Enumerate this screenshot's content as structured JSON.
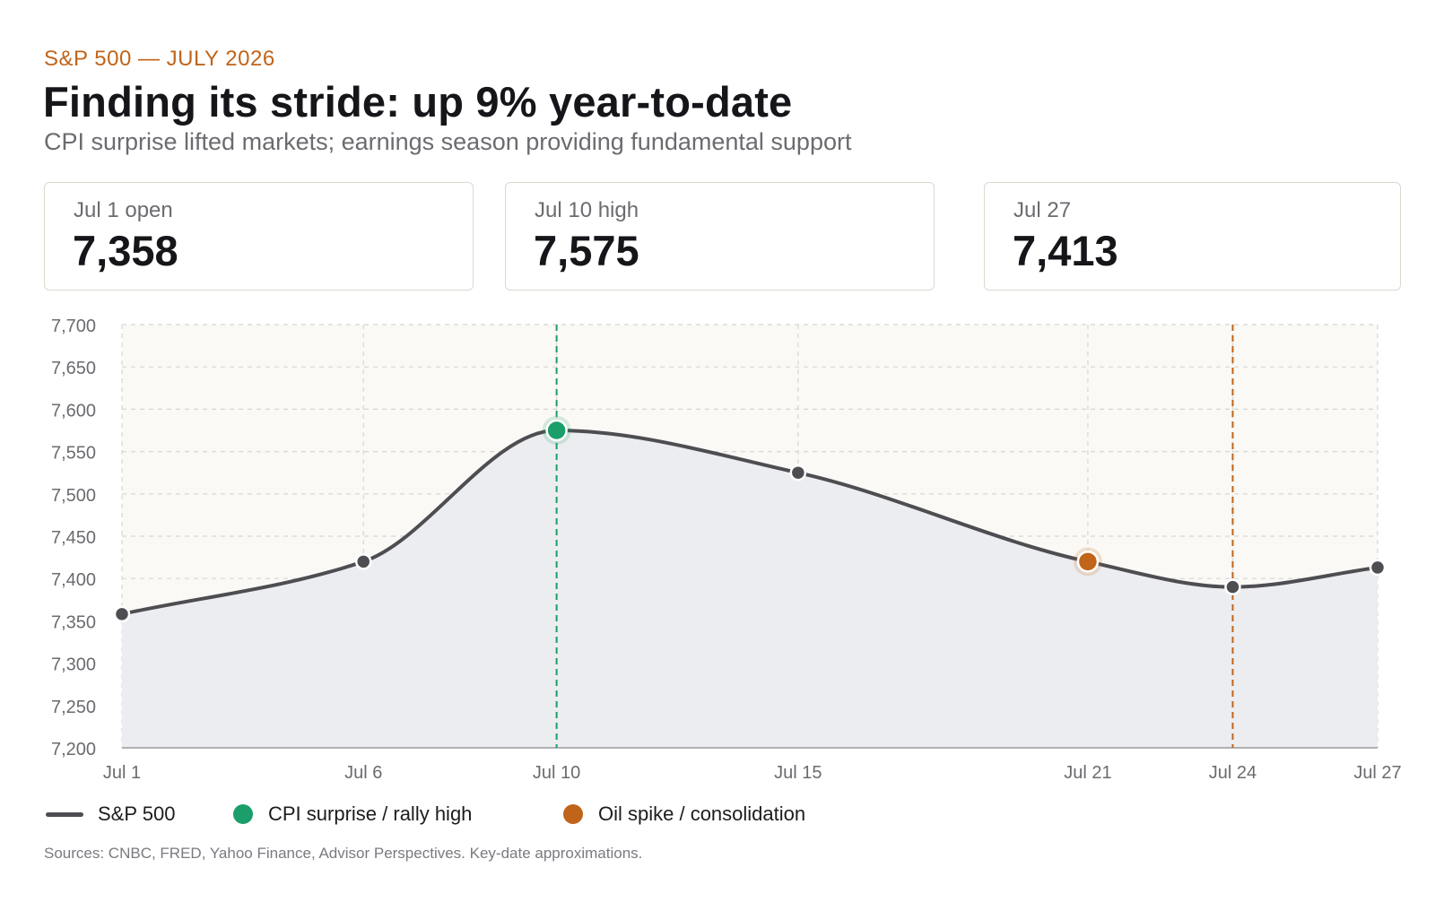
{
  "header": {
    "eyebrow": "S&P 500 — JULY 2026",
    "title": "Finding its stride: up 9% year-to-date",
    "subtitle": "CPI surprise lifted markets; earnings season providing fundamental support"
  },
  "stats": [
    {
      "label": "Jul 1 open",
      "value": "7,358"
    },
    {
      "label": "Jul 10 high",
      "value": "7,575"
    },
    {
      "label": "Jul 27",
      "value": "7,413"
    }
  ],
  "chart_data": {
    "type": "area",
    "title": "",
    "xlabel": "",
    "ylabel": "",
    "x_day_range": [
      1,
      27
    ],
    "ylim": [
      7200,
      7700
    ],
    "yticks": [
      7200,
      7250,
      7300,
      7350,
      7400,
      7450,
      7500,
      7550,
      7600,
      7650,
      7700
    ],
    "ytick_labels": [
      "7,200",
      "7,250",
      "7,300",
      "7,350",
      "7,400",
      "7,450",
      "7,500",
      "7,550",
      "7,600",
      "7,650",
      "7,700"
    ],
    "xticks": [
      {
        "day": 1,
        "label": "Jul 1"
      },
      {
        "day": 6,
        "label": "Jul 6"
      },
      {
        "day": 10,
        "label": "Jul 10"
      },
      {
        "day": 15,
        "label": "Jul 15"
      },
      {
        "day": 21,
        "label": "Jul 21"
      },
      {
        "day": 24,
        "label": "Jul 24"
      },
      {
        "day": 27,
        "label": "Jul 27"
      }
    ],
    "grid": true,
    "series": [
      {
        "name": "S&P 500",
        "color": "#4d4d52",
        "points": [
          {
            "day": 1,
            "value": 7358
          },
          {
            "day": 6,
            "value": 7420
          },
          {
            "day": 10,
            "value": 7575
          },
          {
            "day": 15,
            "value": 7525
          },
          {
            "day": 21,
            "value": 7420
          },
          {
            "day": 24,
            "value": 7390
          },
          {
            "day": 27,
            "value": 7413
          }
        ]
      }
    ],
    "events": [
      {
        "day": 10,
        "value": 7575,
        "name": "CPI surprise / rally high",
        "color": "#1b9e6a"
      },
      {
        "day": 21,
        "value": 7420,
        "name": "Oil spike / consolidation",
        "color": "#c0641a",
        "marker_only": true
      },
      {
        "day": 24,
        "name": "Oil spike / consolidation",
        "color": "#c0641a",
        "line_only": true
      }
    ],
    "legend": {
      "position": "bottom-left",
      "items": [
        {
          "label": "S&P 500",
          "kind": "line",
          "color": "#4d4d52"
        },
        {
          "label": "CPI surprise / rally high",
          "kind": "dot",
          "color": "#1b9e6a"
        },
        {
          "label": "Oil spike / consolidation",
          "kind": "dot",
          "color": "#c0641a"
        }
      ]
    },
    "colors": {
      "plot_background": "#faf9f5",
      "area_fill": "#ecedf0",
      "grid": "#d8d6d0",
      "axis_text": "#6b6b70"
    }
  },
  "footnote": "Sources: CNBC, FRED, Yahoo Finance, Advisor Perspectives. Key-date approximations."
}
